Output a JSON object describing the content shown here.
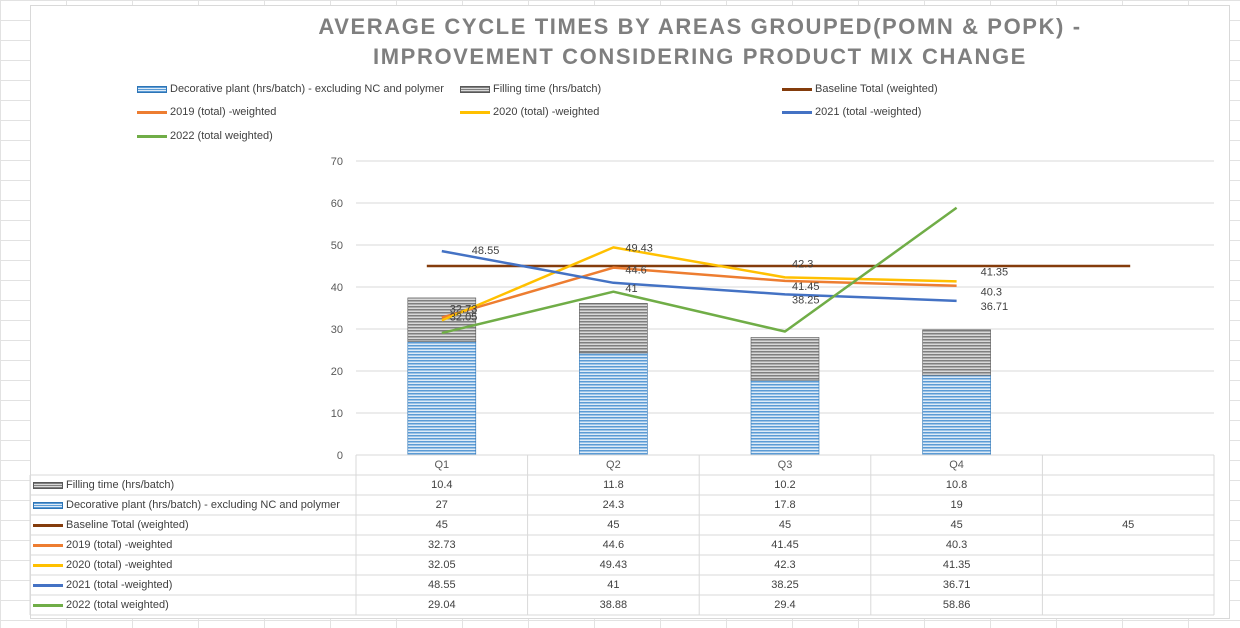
{
  "chart_data": {
    "type": "bar",
    "title": "AVERAGE CYCLE TIMES BY AREAS GROUPED(POMN & POPK) - IMPROVEMENT CONSIDERING PRODUCT MIX CHANGE",
    "categories": [
      "Q1",
      "Q2",
      "Q3",
      "Q4",
      ""
    ],
    "ylim": [
      0,
      70
    ],
    "yticks": [
      "0",
      "10",
      "20",
      "30",
      "40",
      "50",
      "60",
      "70"
    ],
    "stacked_series": [
      {
        "name": "Decorative plant (hrs/batch) - excluding NC and polymer",
        "values": [
          27,
          24.3,
          17.8,
          19,
          null
        ],
        "color": "#5b9bd5"
      },
      {
        "name": "Filling time (hrs/batch)",
        "values": [
          10.4,
          11.8,
          10.2,
          10.8,
          null
        ],
        "color": "#7f7f7f"
      }
    ],
    "line_series": [
      {
        "name": "Baseline Total (weighted)",
        "values": [
          45,
          45,
          45,
          45,
          45
        ],
        "color": "#843c0c"
      },
      {
        "name": "2019 (total) -weighted",
        "values": [
          32.73,
          44.6,
          41.45,
          40.3,
          null
        ],
        "color": "#ed7d31"
      },
      {
        "name": "2020 (total) -weighted",
        "values": [
          32.05,
          49.43,
          42.3,
          41.35,
          null
        ],
        "color": "#ffc000"
      },
      {
        "name": "2021 (total -weighted)",
        "values": [
          48.55,
          41,
          38.25,
          36.71,
          null
        ],
        "color": "#4472c4"
      },
      {
        "name": "2022 (total weighted)",
        "values": [
          29.04,
          38.88,
          29.4,
          58.86,
          null
        ],
        "color": "#70ad47"
      }
    ],
    "data_labels": {
      "Q1": [
        "48.55",
        "32.73",
        "32.05"
      ],
      "Q2": [
        "49.43",
        "44.6",
        "41"
      ],
      "Q3": [
        "42.3",
        "41.45",
        "38.25"
      ],
      "Q4": [
        "41.35",
        "40.3",
        "36.71"
      ]
    },
    "data_table": {
      "rows": [
        {
          "name": "Filling time (hrs/batch)",
          "key": "gray-bar",
          "cells": [
            "10.4",
            "11.8",
            "10.2",
            "10.8",
            ""
          ]
        },
        {
          "name": "Decorative plant (hrs/batch) - excluding NC and polymer",
          "key": "blue-bar",
          "cells": [
            "27",
            "24.3",
            "17.8",
            "19",
            ""
          ]
        },
        {
          "name": "Baseline Total (weighted)",
          "key": "#843c0c",
          "cells": [
            "45",
            "45",
            "45",
            "45",
            "45"
          ]
        },
        {
          "name": "2019 (total) -weighted",
          "key": "#ed7d31",
          "cells": [
            "32.73",
            "44.6",
            "41.45",
            "40.3",
            ""
          ]
        },
        {
          "name": "2020 (total) -weighted",
          "key": "#ffc000",
          "cells": [
            "32.05",
            "49.43",
            "42.3",
            "41.35",
            ""
          ]
        },
        {
          "name": "2021 (total -weighted)",
          "key": "#4472c4",
          "cells": [
            "48.55",
            "41",
            "38.25",
            "36.71",
            ""
          ]
        },
        {
          "name": "2022 (total weighted)",
          "key": "#70ad47",
          "cells": [
            "29.04",
            "38.88",
            "29.4",
            "58.86",
            ""
          ]
        }
      ]
    },
    "legend": [
      {
        "name": "Decorative plant (hrs/batch) - excluding NC and polymer",
        "kind": "blue-bar"
      },
      {
        "name": "Filling time (hrs/batch)",
        "kind": "gray-bar"
      },
      {
        "name": "Baseline Total (weighted)",
        "kind": "line",
        "color": "#843c0c"
      },
      {
        "name": "2019 (total) -weighted",
        "kind": "line",
        "color": "#ed7d31"
      },
      {
        "name": "2020 (total) -weighted",
        "kind": "line",
        "color": "#ffc000"
      },
      {
        "name": "2021 (total -weighted)",
        "kind": "line",
        "color": "#4472c4"
      },
      {
        "name": "2022 (total weighted)",
        "kind": "line",
        "color": "#70ad47"
      }
    ],
    "legend_placement": "top",
    "grid": true
  }
}
